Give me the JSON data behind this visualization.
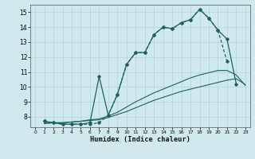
{
  "xlabel": "Humidex (Indice chaleur)",
  "xlim": [
    -0.5,
    23.5
  ],
  "ylim": [
    7.3,
    15.5
  ],
  "xticks": [
    0,
    1,
    2,
    3,
    4,
    5,
    6,
    7,
    8,
    9,
    10,
    11,
    12,
    13,
    14,
    15,
    16,
    17,
    18,
    19,
    20,
    21,
    22,
    23
  ],
  "yticks": [
    8,
    9,
    10,
    11,
    12,
    13,
    14,
    15
  ],
  "yticklabels": [
    "8",
    "9",
    "10",
    "11",
    "12",
    "13",
    "14",
    "15"
  ],
  "bg_color": "#cfe9ed",
  "grid_color": "#b8d8dc",
  "line_color": "#206060",
  "line1_x": [
    1,
    2,
    3,
    4,
    5,
    6,
    7,
    8,
    9,
    10,
    11,
    12,
    13,
    14,
    15,
    16,
    17,
    18,
    19,
    20,
    21
  ],
  "line1_y": [
    7.7,
    7.6,
    7.5,
    7.5,
    7.5,
    7.5,
    7.6,
    8.1,
    9.5,
    11.5,
    12.3,
    12.3,
    13.5,
    14.0,
    13.9,
    14.3,
    14.5,
    15.2,
    14.6,
    13.8,
    11.7
  ],
  "line2_x": [
    1,
    2,
    3,
    4,
    5,
    6,
    7,
    8,
    9,
    10,
    11,
    12,
    13,
    14,
    15,
    16,
    17,
    18,
    19,
    20,
    21,
    22
  ],
  "line2_y": [
    7.7,
    7.6,
    7.5,
    7.5,
    7.5,
    7.6,
    10.7,
    8.1,
    9.5,
    11.5,
    12.3,
    12.3,
    13.5,
    14.0,
    13.9,
    14.3,
    14.5,
    15.2,
    14.6,
    13.8,
    13.2,
    10.2
  ],
  "line3_x": [
    1,
    2,
    3,
    4,
    5,
    6,
    7,
    8,
    9,
    10,
    11,
    12,
    13,
    14,
    15,
    16,
    17,
    18,
    19,
    20,
    21,
    22,
    23
  ],
  "line3_y": [
    7.55,
    7.6,
    7.6,
    7.65,
    7.7,
    7.75,
    7.8,
    7.95,
    8.15,
    8.35,
    8.6,
    8.85,
    9.1,
    9.3,
    9.5,
    9.7,
    9.85,
    10.0,
    10.15,
    10.3,
    10.45,
    10.55,
    10.15
  ],
  "line4_x": [
    1,
    2,
    3,
    4,
    5,
    6,
    7,
    8,
    9,
    10,
    11,
    12,
    13,
    14,
    15,
    16,
    17,
    18,
    19,
    20,
    21,
    22,
    23
  ],
  "line4_y": [
    7.55,
    7.6,
    7.6,
    7.65,
    7.7,
    7.8,
    7.85,
    8.05,
    8.3,
    8.65,
    9.0,
    9.3,
    9.6,
    9.85,
    10.1,
    10.35,
    10.6,
    10.8,
    10.95,
    11.1,
    11.1,
    10.8,
    10.1
  ]
}
